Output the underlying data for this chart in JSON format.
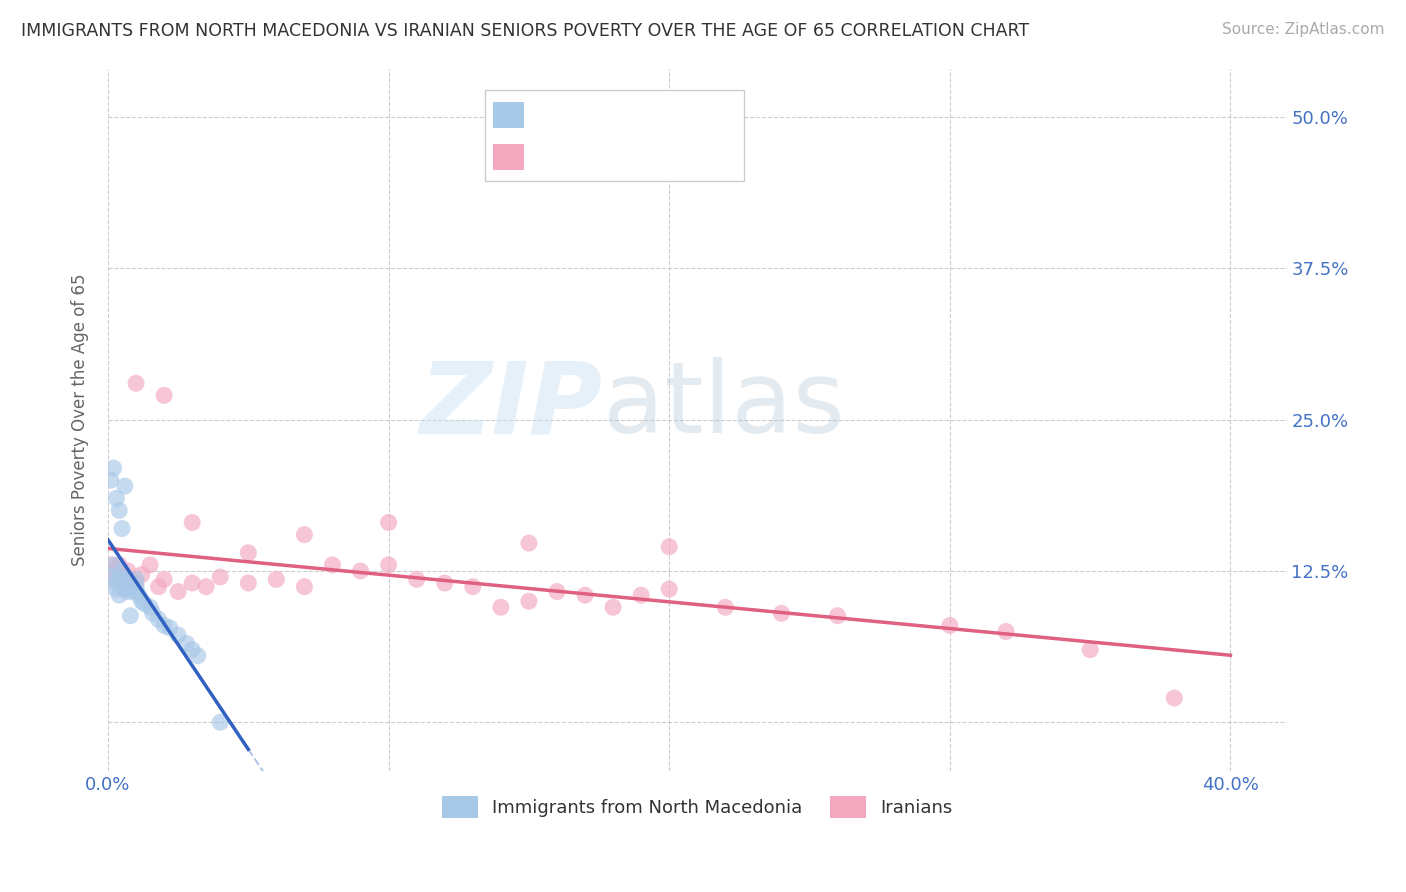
{
  "title": "IMMIGRANTS FROM NORTH MACEDONIA VS IRANIAN SENIORS POVERTY OVER THE AGE OF 65 CORRELATION CHART",
  "source": "Source: ZipAtlas.com",
  "ylabel": "Seniors Poverty Over the Age of 65",
  "xlim": [
    0.0,
    0.42
  ],
  "ylim": [
    -0.04,
    0.54
  ],
  "yticks": [
    0.0,
    0.125,
    0.25,
    0.375,
    0.5
  ],
  "xticks": [
    0.0,
    0.1,
    0.2,
    0.3,
    0.4
  ],
  "color_blue": "#a8c8e8",
  "color_pink": "#f4a8c0",
  "trendline_blue": "#3060c0",
  "trendline_pink": "#e06080",
  "watermark_zip": "ZIP",
  "watermark_atlas": "atlas",
  "background": "#ffffff",
  "grid_color": "#cccccc",
  "title_color": "#333333",
  "axis_color": "#4472c4",
  "blue_scatter_x": [
    0.001,
    0.002,
    0.003,
    0.003,
    0.004,
    0.004,
    0.005,
    0.005,
    0.006,
    0.006,
    0.007,
    0.007,
    0.008,
    0.009,
    0.01,
    0.01,
    0.011,
    0.012,
    0.013,
    0.015,
    0.016,
    0.018,
    0.02,
    0.022,
    0.025,
    0.028,
    0.03,
    0.032,
    0.001,
    0.002,
    0.003,
    0.004,
    0.005,
    0.006,
    0.04,
    0.008
  ],
  "blue_scatter_y": [
    0.12,
    0.13,
    0.11,
    0.115,
    0.105,
    0.12,
    0.115,
    0.125,
    0.11,
    0.118,
    0.108,
    0.112,
    0.115,
    0.108,
    0.112,
    0.118,
    0.105,
    0.1,
    0.098,
    0.095,
    0.09,
    0.085,
    0.08,
    0.078,
    0.072,
    0.065,
    0.06,
    0.055,
    0.2,
    0.21,
    0.185,
    0.175,
    0.16,
    0.195,
    0.0,
    0.088
  ],
  "pink_scatter_x": [
    0.001,
    0.002,
    0.003,
    0.004,
    0.005,
    0.006,
    0.007,
    0.008,
    0.01,
    0.012,
    0.015,
    0.018,
    0.02,
    0.025,
    0.03,
    0.035,
    0.04,
    0.05,
    0.06,
    0.07,
    0.08,
    0.09,
    0.1,
    0.11,
    0.12,
    0.13,
    0.14,
    0.15,
    0.16,
    0.17,
    0.18,
    0.19,
    0.2,
    0.22,
    0.24,
    0.26,
    0.3,
    0.32,
    0.35,
    0.38,
    0.01,
    0.02,
    0.03,
    0.05,
    0.07,
    0.1,
    0.15,
    0.2
  ],
  "pink_scatter_y": [
    0.13,
    0.125,
    0.118,
    0.13,
    0.12,
    0.115,
    0.125,
    0.118,
    0.115,
    0.122,
    0.13,
    0.112,
    0.118,
    0.108,
    0.115,
    0.112,
    0.12,
    0.115,
    0.118,
    0.112,
    0.13,
    0.125,
    0.13,
    0.118,
    0.115,
    0.112,
    0.095,
    0.1,
    0.108,
    0.105,
    0.095,
    0.105,
    0.11,
    0.095,
    0.09,
    0.088,
    0.08,
    0.075,
    0.06,
    0.02,
    0.28,
    0.27,
    0.165,
    0.14,
    0.155,
    0.165,
    0.148,
    0.145
  ],
  "dashed_color": "#b0c8e8"
}
